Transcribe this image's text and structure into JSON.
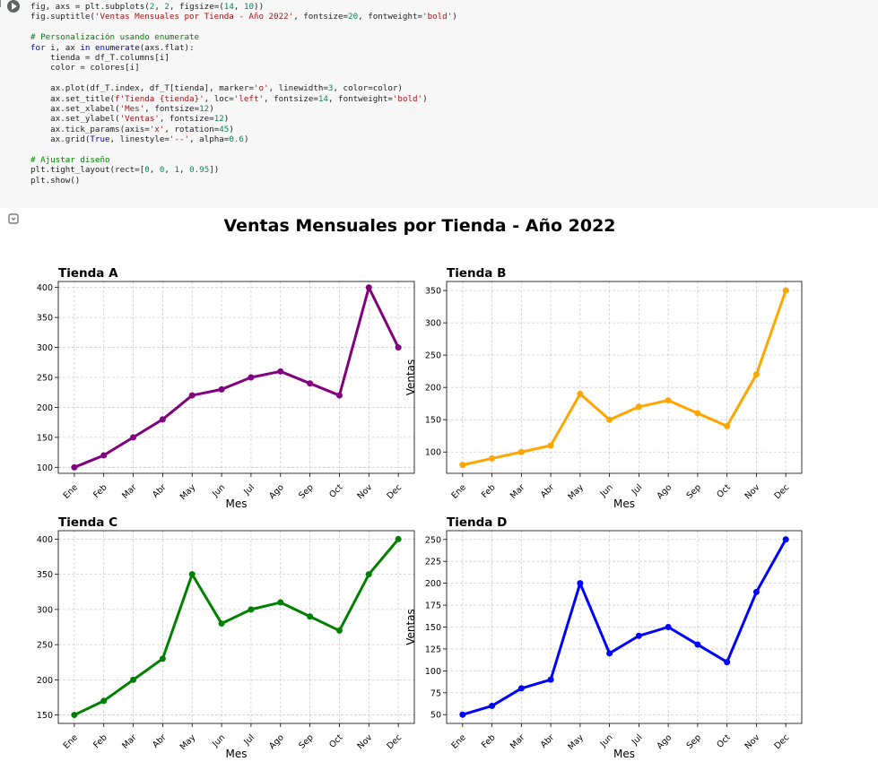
{
  "code": {
    "lines": [
      [
        {
          "t": "fig, axs = plt.subplots(",
          "c": ""
        },
        {
          "t": "2",
          "c": "num"
        },
        {
          "t": ", ",
          "c": ""
        },
        {
          "t": "2",
          "c": "num"
        },
        {
          "t": ", figsize=(",
          "c": ""
        },
        {
          "t": "14",
          "c": "num"
        },
        {
          "t": ", ",
          "c": ""
        },
        {
          "t": "10",
          "c": "num"
        },
        {
          "t": "))",
          "c": ""
        }
      ],
      [
        {
          "t": "fig.suptitle(",
          "c": ""
        },
        {
          "t": "'Ventas Mensuales por Tienda - Año 2022'",
          "c": "str"
        },
        {
          "t": ", fontsize=",
          "c": ""
        },
        {
          "t": "20",
          "c": "num"
        },
        {
          "t": ", fontweight=",
          "c": ""
        },
        {
          "t": "'bold'",
          "c": "str"
        },
        {
          "t": ")",
          "c": ""
        }
      ],
      [],
      [
        {
          "t": "# Personalización usando enumerate",
          "c": "cm"
        }
      ],
      [
        {
          "t": "for",
          "c": "kw"
        },
        {
          "t": " i, ax ",
          "c": ""
        },
        {
          "t": "in",
          "c": "kw"
        },
        {
          "t": " ",
          "c": ""
        },
        {
          "t": "enumerate",
          "c": "kw"
        },
        {
          "t": "(axs.flat):",
          "c": ""
        }
      ],
      [
        {
          "t": "    tienda = df_T.columns[i]",
          "c": ""
        }
      ],
      [
        {
          "t": "    color = colores[i]",
          "c": ""
        }
      ],
      [],
      [
        {
          "t": "    ax.plot(df_T.index, df_T[tienda], marker=",
          "c": ""
        },
        {
          "t": "'o'",
          "c": "str"
        },
        {
          "t": ", linewidth=",
          "c": ""
        },
        {
          "t": "3",
          "c": "num"
        },
        {
          "t": ", color=color)",
          "c": ""
        }
      ],
      [
        {
          "t": "    ax.set_title(",
          "c": ""
        },
        {
          "t": "f'Tienda {tienda}'",
          "c": "str"
        },
        {
          "t": ", loc=",
          "c": ""
        },
        {
          "t": "'left'",
          "c": "str"
        },
        {
          "t": ", fontsize=",
          "c": ""
        },
        {
          "t": "14",
          "c": "num"
        },
        {
          "t": ", fontweight=",
          "c": ""
        },
        {
          "t": "'bold'",
          "c": "str"
        },
        {
          "t": ")",
          "c": ""
        }
      ],
      [
        {
          "t": "    ax.set_xlabel(",
          "c": ""
        },
        {
          "t": "'Mes'",
          "c": "str"
        },
        {
          "t": ", fontsize=",
          "c": ""
        },
        {
          "t": "12",
          "c": "num"
        },
        {
          "t": ")",
          "c": ""
        }
      ],
      [
        {
          "t": "    ax.set_ylabel(",
          "c": ""
        },
        {
          "t": "'Ventas'",
          "c": "str"
        },
        {
          "t": ", fontsize=",
          "c": ""
        },
        {
          "t": "12",
          "c": "num"
        },
        {
          "t": ")",
          "c": ""
        }
      ],
      [
        {
          "t": "    ax.tick_params(axis=",
          "c": ""
        },
        {
          "t": "'x'",
          "c": "str"
        },
        {
          "t": ", rotation=",
          "c": ""
        },
        {
          "t": "45",
          "c": "num"
        },
        {
          "t": ")",
          "c": ""
        }
      ],
      [
        {
          "t": "    ax.grid(",
          "c": ""
        },
        {
          "t": "True",
          "c": "kw"
        },
        {
          "t": ", linestyle=",
          "c": ""
        },
        {
          "t": "'--'",
          "c": "str"
        },
        {
          "t": ", alpha=",
          "c": ""
        },
        {
          "t": "0.6",
          "c": "num"
        },
        {
          "t": ")",
          "c": ""
        }
      ],
      [],
      [
        {
          "t": "# Ajustar diseño",
          "c": "cm"
        }
      ],
      [
        {
          "t": "plt.tight_layout(rect=[",
          "c": ""
        },
        {
          "t": "0",
          "c": "num"
        },
        {
          "t": ", ",
          "c": ""
        },
        {
          "t": "0",
          "c": "num"
        },
        {
          "t": ", ",
          "c": ""
        },
        {
          "t": "1",
          "c": "num"
        },
        {
          "t": ", ",
          "c": ""
        },
        {
          "t": "0.95",
          "c": "num"
        },
        {
          "t": "])",
          "c": ""
        }
      ],
      [
        {
          "t": "plt.show()",
          "c": ""
        }
      ]
    ]
  },
  "chart_data": {
    "type": "line",
    "title": "Ventas Mensuales por Tienda - Año 2022",
    "categories": [
      "Ene",
      "Feb",
      "Mar",
      "Abr",
      "May",
      "Jun",
      "Jul",
      "Ago",
      "Sep",
      "Oct",
      "Nov",
      "Dec"
    ],
    "xlabel": "Mes",
    "ylabel": "Ventas",
    "grid": true,
    "subplots": [
      {
        "title": "Tienda A",
        "color": "#800080",
        "values": [
          100,
          120,
          150,
          180,
          220,
          230,
          250,
          260,
          240,
          220,
          400,
          300
        ],
        "ylim": [
          90,
          410
        ],
        "yticks": [
          100,
          150,
          200,
          250,
          300,
          350,
          400
        ]
      },
      {
        "title": "Tienda B",
        "color": "#ffa500",
        "values": [
          80,
          90,
          100,
          110,
          190,
          150,
          170,
          180,
          160,
          140,
          220,
          350
        ],
        "ylim": [
          67,
          364
        ],
        "yticks": [
          100,
          150,
          200,
          250,
          300,
          350
        ]
      },
      {
        "title": "Tienda C",
        "color": "#008000",
        "values": [
          150,
          170,
          200,
          230,
          350,
          280,
          300,
          310,
          290,
          270,
          350,
          400
        ],
        "ylim": [
          138,
          412
        ],
        "yticks": [
          150,
          200,
          250,
          300,
          350,
          400
        ]
      },
      {
        "title": "Tienda D",
        "color": "#0000ff",
        "values": [
          50,
          60,
          80,
          90,
          200,
          120,
          140,
          150,
          130,
          110,
          190,
          250
        ],
        "ylim": [
          40,
          260
        ],
        "yticks": [
          50,
          75,
          100,
          125,
          150,
          175,
          200,
          225,
          250
        ]
      }
    ]
  }
}
